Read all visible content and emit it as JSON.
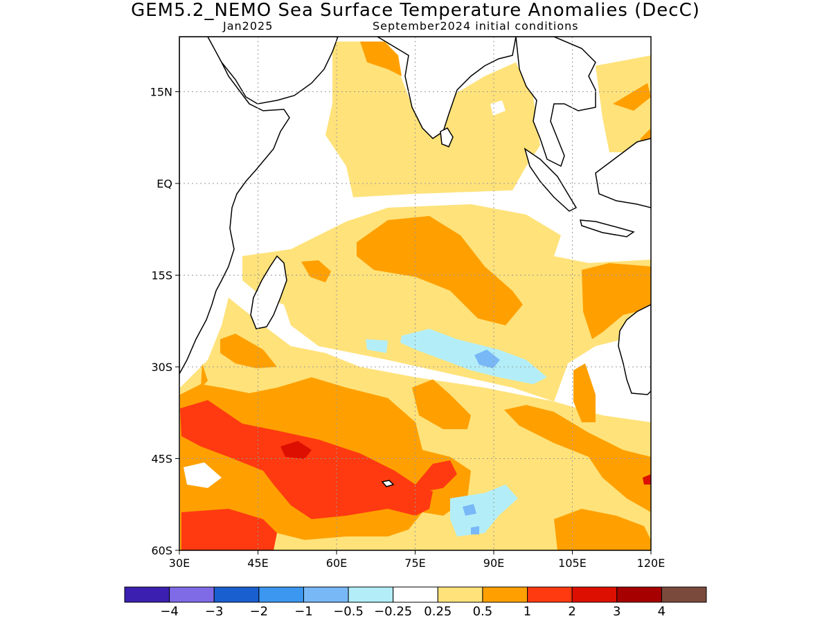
{
  "title": "GEM5.2_NEMO Sea Surface Temperature Anomalies (DecC)",
  "subtitle_left": "Jan2025",
  "subtitle_right": "September2024 initial conditions",
  "map": {
    "lon_range": [
      30,
      120
    ],
    "lat_range": [
      -60,
      24
    ],
    "lon_ticks": [
      "30E",
      "45E",
      "60E",
      "75E",
      "90E",
      "105E",
      "120E"
    ],
    "lat_ticks": [
      "15N",
      "EQ",
      "15S",
      "30S",
      "45S",
      "60S"
    ],
    "grid": "dotted"
  },
  "colorbar": {
    "colors": [
      "#3b1fb0",
      "#7f6be6",
      "#1a5fd0",
      "#3c97f0",
      "#78b8f7",
      "#b3eef8",
      "#ffffff",
      "#ffe27a",
      "#ffa000",
      "#ff3a10",
      "#dd0f00",
      "#a60000",
      "#7a4a3c"
    ],
    "labels": [
      "−4",
      "−3",
      "−2",
      "−1",
      "−0.5",
      "−0.25",
      "0.25",
      "0.5",
      "1",
      "2",
      "3",
      "4"
    ]
  }
}
